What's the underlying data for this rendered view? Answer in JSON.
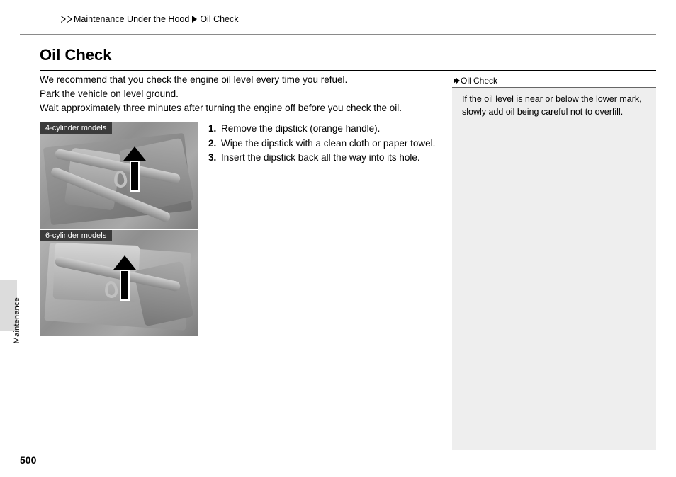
{
  "breadcrumb": {
    "level1": "Maintenance Under the Hood",
    "level2": "Oil Check"
  },
  "heading": "Oil Check",
  "intro": {
    "p1": "We recommend that you check the engine oil level every time you refuel.",
    "p2": "Park the vehicle on level ground.",
    "p3": "Wait approximately three minutes after turning the engine off before you check the oil."
  },
  "figures": {
    "label1": "4-cylinder models",
    "label2": "6-cylinder models"
  },
  "steps": {
    "s1": "Remove the dipstick (orange handle).",
    "s2": "Wipe the dipstick with a clean cloth or paper towel.",
    "s3": "Insert the dipstick back all the way into its hole."
  },
  "sidebar": {
    "title": "Oil Check",
    "body": "If the oil level is near or below the lower mark, slowly add oil being careful not to overfill."
  },
  "section_tab": "Maintenance",
  "page_number": "500",
  "colors": {
    "rule": "#000000",
    "sidebox_bg": "#eeeeee",
    "tab_bg": "#dcdcdc",
    "fig_label_bg": "#3b3b3b"
  }
}
